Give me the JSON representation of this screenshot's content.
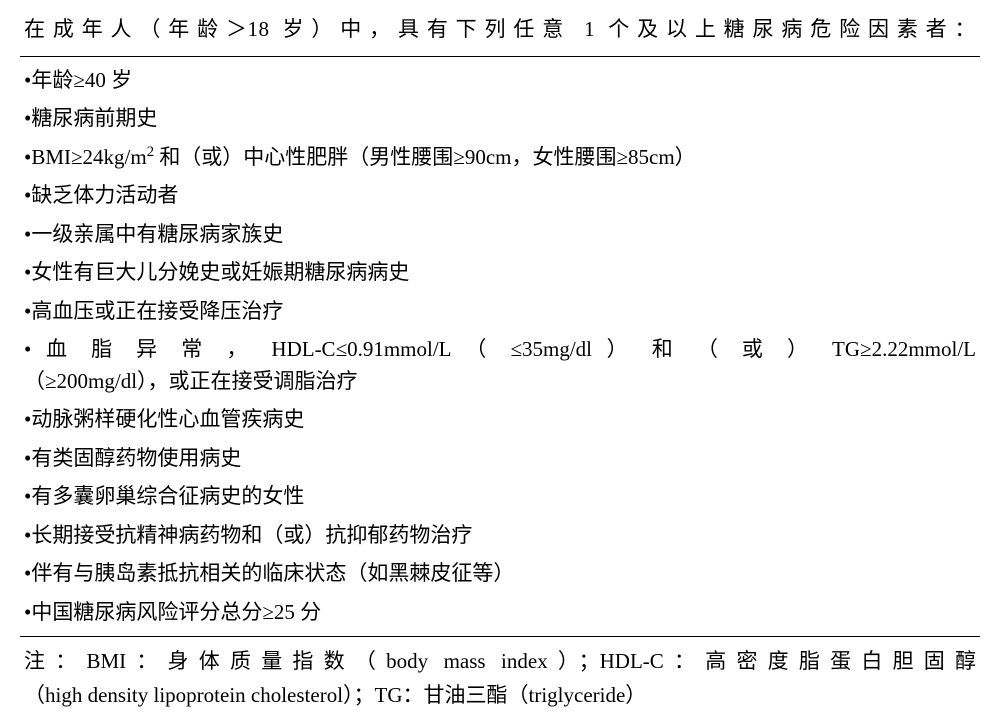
{
  "table": {
    "header": "在成年人（年龄＞18 岁）中，具有下列任意 1 个及以上糖尿病危险因素者：",
    "items": [
      "•年龄≥40 岁",
      "•糖尿病前期史",
      "•BMI≥24kg/m² 和（或）中心性肥胖（男性腰围≥90cm，女性腰围≥85cm）",
      "•缺乏体力活动者",
      "•一级亲属中有糖尿病家族史",
      "•女性有巨大儿分娩史或妊娠期糖尿病病史",
      "•高血压或正在接受降压治疗",
      "• 血 脂 异 常 ， HDL-C≤0.91mmol/L （ ≤35mg/dl ） 和 （ 或 ） TG≥2.22mmol/L（≥200mg/dl），或正在接受调脂治疗",
      "•动脉粥样硬化性心血管疾病史",
      "•有类固醇药物使用病史",
      "•有多囊卵巢综合征病史的女性",
      "•长期接受抗精神病药物和（或）抗抑郁药物治疗",
      "•伴有与胰岛素抵抗相关的临床状态（如黑棘皮征等）",
      "•中国糖尿病风险评分总分≥25 分"
    ],
    "footnote_line1": "注：BMI：身体质量指数（body mass index）；HDL-C：高密度脂蛋白胆固醇",
    "footnote_line2": "（high density lipoprotein cholesterol）；TG：甘油三酯（triglyceride）"
  },
  "styling": {
    "background_color": "#ffffff",
    "text_color": "#000000",
    "border_color": "#000000",
    "font_size": 21,
    "font_family": "SimSun, Times New Roman, serif",
    "line_height": 1.5
  }
}
